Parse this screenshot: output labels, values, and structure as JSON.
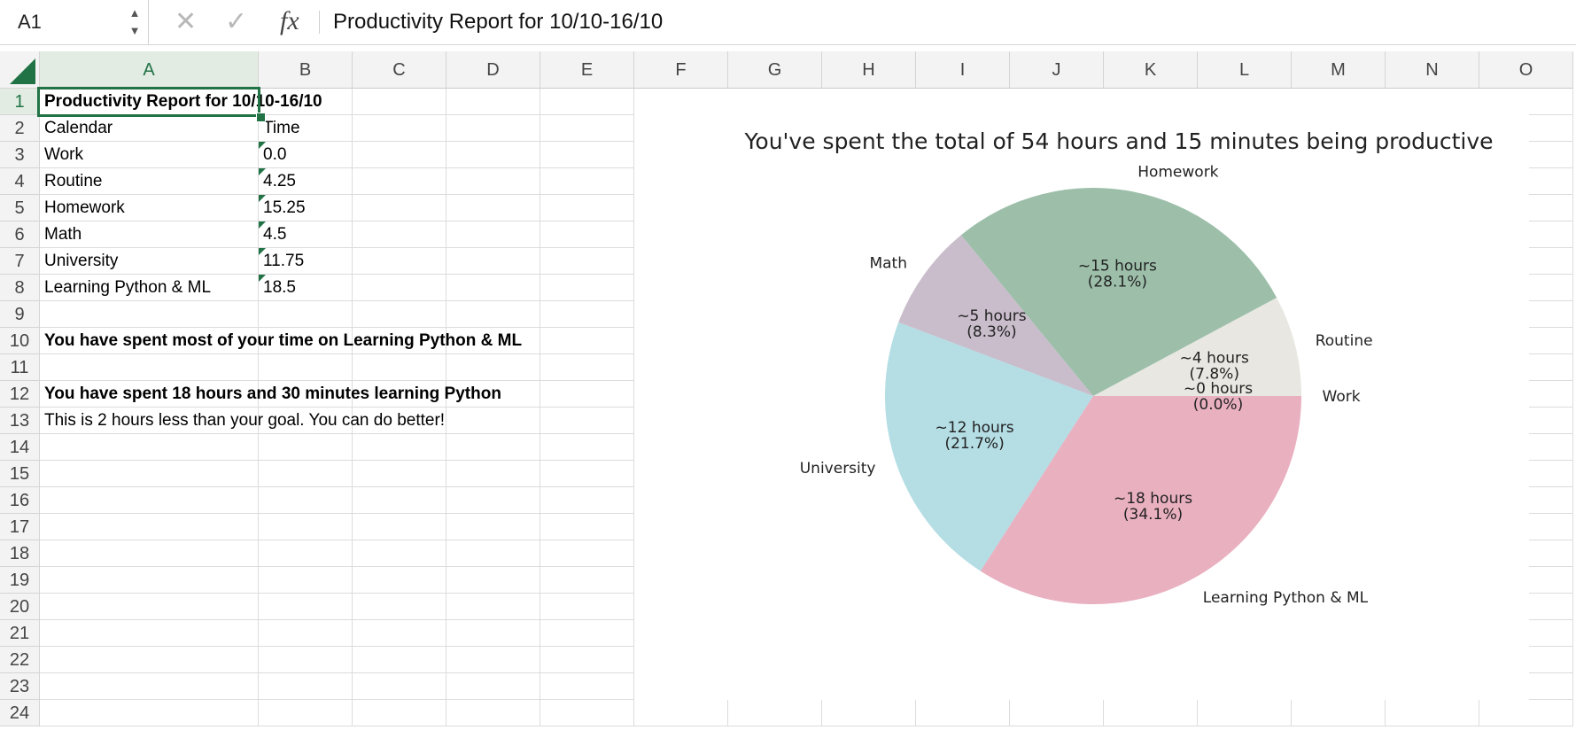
{
  "formula_bar": {
    "name_box": "A1",
    "cancel_icon": "close-icon",
    "confirm_icon": "check-icon",
    "fx_label": "fx",
    "content": "Productivity Report for 10/10-16/10"
  },
  "columns": [
    "A",
    "B",
    "C",
    "D",
    "E",
    "F",
    "G",
    "H",
    "I",
    "J",
    "K",
    "L",
    "M",
    "N",
    "O"
  ],
  "rows": [
    "1",
    "2",
    "3",
    "4",
    "5",
    "6",
    "7",
    "8",
    "9",
    "10",
    "11",
    "12",
    "13",
    "14",
    "15",
    "16",
    "17",
    "18",
    "19",
    "20",
    "21",
    "22",
    "23",
    "24"
  ],
  "selected_cell": {
    "column": "A",
    "row": "1"
  },
  "cells": {
    "A1": "Productivity Report for 10/10-16/10",
    "A2": "Calendar",
    "B2": "Time",
    "A3": "Work",
    "B3": "0.0",
    "A4": "Routine",
    "B4": "4.25",
    "A5": "Homework",
    "B5": "15.25",
    "A6": "Math",
    "B6": "4.5",
    "A7": "University",
    "B7": "11.75",
    "A8": "Learning Python & ML",
    "B8": "18.5",
    "A10": "You have spent most of your time on Learning Python & ML",
    "A12": "You have spent 18 hours and 30 minutes learning Python",
    "A13": "This is 2 hours less than your goal. You can do better!"
  },
  "bold_cells": [
    "A1",
    "A10",
    "A12"
  ],
  "number_as_text_cells": [
    "B3",
    "B4",
    "B5",
    "B6",
    "B7",
    "B8"
  ],
  "colors": {
    "accent": "#217346",
    "slices": {
      "Work": "#e8e7e1",
      "Routine": "#e8e7e1",
      "Homework": "#9dbfaa",
      "Math": "#c9bccb",
      "University": "#b4dde4",
      "Learning Python & ML": "#e9b0c0"
    }
  },
  "chart_data": {
    "type": "pie",
    "title": "You've spent the total of 54 hours and 15 minutes being productive",
    "slices": [
      {
        "label": "Work",
        "value": 0.0,
        "text": "~0 hours",
        "percent": "(0.0%)"
      },
      {
        "label": "Routine",
        "value": 4.25,
        "text": "~4 hours",
        "percent": "(7.8%)"
      },
      {
        "label": "Homework",
        "value": 15.25,
        "text": "~15 hours",
        "percent": "(28.1%)"
      },
      {
        "label": "Math",
        "value": 4.5,
        "text": "~5 hours",
        "percent": "(8.3%)"
      },
      {
        "label": "University",
        "value": 11.75,
        "text": "~12 hours",
        "percent": "(21.7%)"
      },
      {
        "label": "Learning Python & ML",
        "value": 18.5,
        "text": "~18 hours",
        "percent": "(34.1%)"
      }
    ],
    "start_angle_deg": 0,
    "direction": "counterclockwise"
  }
}
